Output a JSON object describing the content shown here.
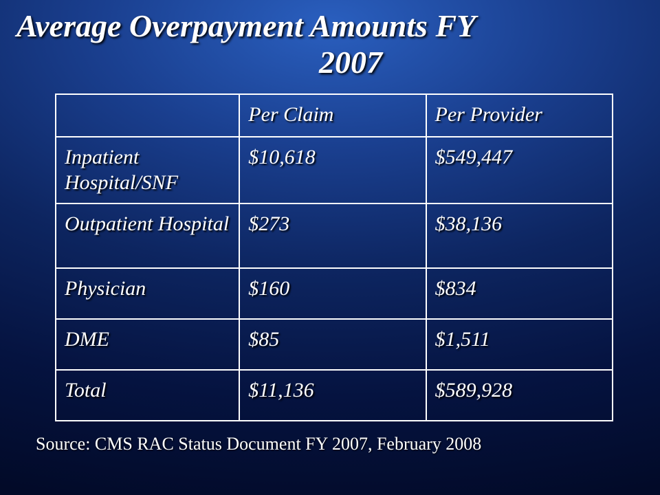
{
  "title": {
    "line1": "Average Overpayment Amounts  FY",
    "line2": "2007"
  },
  "table": {
    "type": "table",
    "border_color": "#ffffff",
    "text_color": "#ffffff",
    "font_style": "italic",
    "cell_fontsize": 30,
    "shadow_color": "#000000",
    "columns": [
      "",
      "Per Claim",
      "Per Provider"
    ],
    "rows": [
      {
        "label": "Inpatient Hospital/SNF",
        "per_claim": "$10,618",
        "per_provider": "$549,447",
        "lines": 2
      },
      {
        "label": "Outpatient Hospital",
        "per_claim": "$273",
        "per_provider": "$38,136",
        "lines": 2
      },
      {
        "label": "Physician",
        "per_claim": "$160",
        "per_provider": "$834",
        "lines": 1
      },
      {
        "label": "DME",
        "per_claim": "$85",
        "per_provider": "$1,511",
        "lines": 1
      },
      {
        "label": "Total",
        "per_claim": "$11,136",
        "per_provider": "$589,928",
        "lines": 1
      }
    ]
  },
  "source": "Source:  CMS RAC Status Document FY 2007, February 2008",
  "style": {
    "background_gradient": {
      "type": "radial",
      "stops": [
        "#2a5fbf",
        "#1a3f8f",
        "#0d2560",
        "#051340",
        "#020a28"
      ]
    },
    "title_fontsize": 46,
    "title_color": "#ffffff",
    "source_fontsize": 26,
    "font_family": "Garamond"
  }
}
